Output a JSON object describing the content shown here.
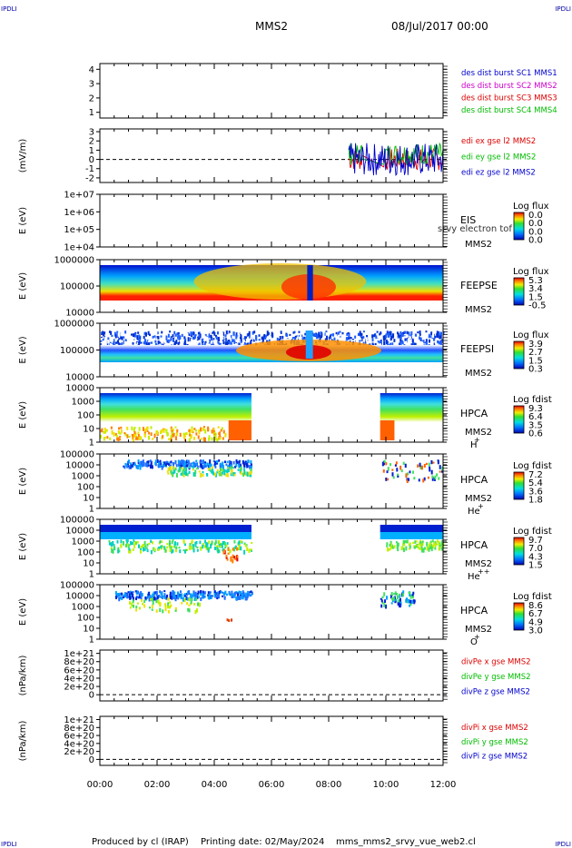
{
  "header": {
    "corner_tl": "IPDLI",
    "corner_tr": "IPDLI",
    "corner_bl": "IPDLI",
    "corner_br": "IPDLI",
    "spacecraft": "MMS2",
    "date": "08/Jul/2017 00:00"
  },
  "footer": {
    "produced_by": "Produced by cl (IRAP)",
    "printing_date": "Printing date: 02/May/2024",
    "filename": "mms_mms2_srvy_vue_web2.cl"
  },
  "colors": {
    "blue": "#0000cc",
    "magenta": "#cc00cc",
    "red": "#dd0000",
    "green": "#00bb00"
  },
  "chart_data": {
    "type": "heatmap",
    "time_axis": {
      "ticks": [
        "00:00",
        "02:00",
        "04:00",
        "06:00",
        "08:00",
        "10:00",
        "12:00"
      ],
      "range_hours": [
        0,
        12
      ]
    },
    "panels": [
      {
        "id": "dist",
        "type": "line",
        "y_ticks": [
          "1",
          "2",
          "3",
          "4"
        ],
        "ylim": [
          0.6,
          4.4
        ],
        "legend": [
          {
            "label": "des dist burst SC1 MMS1",
            "color": "#0000cc"
          },
          {
            "label": "des dist burst SC2 MMS2",
            "color": "#cc00cc"
          },
          {
            "label": "des dist burst SC3 MMS3",
            "color": "#dd0000"
          },
          {
            "label": "des dist burst SC4 MMS4",
            "color": "#00bb00"
          }
        ]
      },
      {
        "id": "edi",
        "type": "line",
        "ylabel": "(mV/m)",
        "y_ticks": [
          "-2",
          "-1",
          "0",
          "1",
          "2",
          "3"
        ],
        "ylim": [
          -2.5,
          3.3
        ],
        "legend": [
          {
            "label": "edi ex gse l2 MMS2",
            "color": "#dd0000"
          },
          {
            "label": "edi ey gse l2 MMS2",
            "color": "#00bb00"
          },
          {
            "label": "edi ez gse l2 MMS2",
            "color": "#0000cc"
          }
        ],
        "data_interval_hours": [
          8.7,
          12.0
        ],
        "note": "field data present between ~08:40 and 12:00, values roughly -2 to 2.5 mV/m"
      },
      {
        "id": "eis",
        "type": "heatmap",
        "ylabel": "E (eV)",
        "y_ticks": [
          "1e+04",
          "1e+05",
          "1e+06",
          "1e+07"
        ],
        "log_y": true,
        "title_lines": [
          "EIS",
          "MMS2"
        ],
        "overlay_text": "srvy electron tof",
        "colorbar": {
          "title": "Log flux",
          "ticks": [
            "0.0",
            "0.0",
            "0.0",
            "0.0"
          ]
        }
      },
      {
        "id": "feepse",
        "type": "heatmap",
        "ylabel": "E (eV)",
        "y_ticks": [
          "10000",
          "100000",
          "1000000"
        ],
        "log_y": true,
        "title_lines": [
          "FEEPSE",
          "MMS2"
        ],
        "colorbar": {
          "title": "Log flux",
          "ticks": [
            "5.3",
            "3.4",
            "1.5",
            "-0.5"
          ]
        }
      },
      {
        "id": "feepsi",
        "type": "heatmap",
        "ylabel": "E (eV)",
        "y_ticks": [
          "10000",
          "100000",
          "1000000"
        ],
        "log_y": true,
        "title_lines": [
          "FEEPSI",
          "MMS2"
        ],
        "colorbar": {
          "title": "Log flux",
          "ticks": [
            "3.9",
            "2.7",
            "1.5",
            "0.3"
          ]
        }
      },
      {
        "id": "hpca_h",
        "type": "heatmap",
        "ylabel": "E (eV)",
        "y_ticks": [
          "1",
          "10",
          "100",
          "1000",
          "10000"
        ],
        "log_y": true,
        "title_lines": [
          "HPCA",
          "MMS2"
        ],
        "species": "H",
        "species_sup": "+",
        "colorbar": {
          "title": "Log fdist",
          "ticks": [
            "9.3",
            "6.4",
            "3.5",
            "0.6"
          ]
        }
      },
      {
        "id": "hpca_he",
        "type": "heatmap",
        "ylabel": "E (eV)",
        "y_ticks": [
          "1",
          "10",
          "100",
          "1000",
          "10000",
          "100000"
        ],
        "log_y": true,
        "title_lines": [
          "HPCA",
          "MMS2"
        ],
        "species": "He",
        "species_sup": "+",
        "colorbar": {
          "title": "Log fdist",
          "ticks": [
            "7.2",
            "5.4",
            "3.6",
            "1.8"
          ]
        }
      },
      {
        "id": "hpca_he2",
        "type": "heatmap",
        "ylabel": "E (eV)",
        "y_ticks": [
          "1",
          "10",
          "100",
          "1000",
          "10000",
          "100000"
        ],
        "log_y": true,
        "title_lines": [
          "HPCA",
          "MMS2"
        ],
        "species": "He",
        "species_sup": "++",
        "colorbar": {
          "title": "Log fdist",
          "ticks": [
            "9.7",
            "7.0",
            "4.3",
            "1.5"
          ]
        }
      },
      {
        "id": "hpca_o",
        "type": "heatmap",
        "ylabel": "E (eV)",
        "y_ticks": [
          "1",
          "10",
          "100",
          "1000",
          "10000",
          "100000"
        ],
        "log_y": true,
        "title_lines": [
          "HPCA",
          "MMS2"
        ],
        "species": "O",
        "species_sup": "+",
        "colorbar": {
          "title": "Log fdist",
          "ticks": [
            "8.6",
            "6.7",
            "4.9",
            "3.0"
          ]
        }
      },
      {
        "id": "divpe",
        "type": "line",
        "ylabel": "(nPa/km)",
        "y_ticks": [
          "0",
          "2e+20",
          "4e+20",
          "6e+20",
          "8e+20",
          "1e+21"
        ],
        "ylim": [
          -0.15,
          1.08
        ],
        "legend": [
          {
            "label": "divPe x gse MMS2",
            "color": "#dd0000"
          },
          {
            "label": "divPe y gse MMS2",
            "color": "#00bb00"
          },
          {
            "label": "divPe z gse MMS2",
            "color": "#0000cc"
          }
        ]
      },
      {
        "id": "divpi",
        "type": "line",
        "ylabel": "(nPa/km)",
        "y_ticks": [
          "0",
          "2e+20",
          "4e+20",
          "6e+20",
          "8e+20",
          "1e+21"
        ],
        "ylim": [
          -0.15,
          1.08
        ],
        "legend": [
          {
            "label": "divPi x gse MMS2",
            "color": "#dd0000"
          },
          {
            "label": "divPi y gse MMS2",
            "color": "#00bb00"
          },
          {
            "label": "divPi z gse MMS2",
            "color": "#0000cc"
          }
        ]
      }
    ]
  }
}
